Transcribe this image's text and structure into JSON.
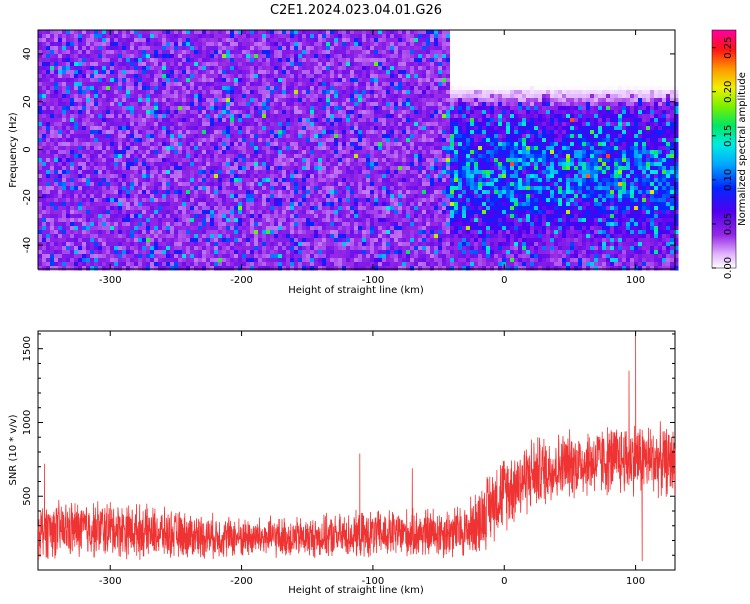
{
  "title": "C2E1.2024.023.04.01.G26",
  "chart_data": [
    {
      "type": "heatmap",
      "xlabel": "Height of straight line (km)",
      "ylabel": "Frequency (Hz)",
      "xlim": [
        -355,
        130
      ],
      "ylim": [
        -50,
        50
      ],
      "xticks": [
        -300,
        -200,
        -100,
        0,
        100
      ],
      "yticks": [
        -40,
        -20,
        0,
        20,
        40
      ],
      "colorbar": {
        "label": "Normalized spectral amplitude",
        "range": [
          0,
          0.27
        ],
        "ticks": [
          "0.00",
          "0.05",
          "0.10",
          "0.15",
          "0.20",
          "0.25"
        ],
        "tick_values": [
          0,
          0.05,
          0.1,
          0.15,
          0.2,
          0.25
        ],
        "colormap": "rainbow (white → violet → blue → cyan → green → yellow → orange → red → pink)"
      },
      "description_values": {
        "background_amplitude": 0.03,
        "peak_amplitude_region_x": [
          -40,
          130
        ],
        "peak_amplitude_region_freq": [
          -35,
          15
        ],
        "low_signal_region": {
          "x": [
            -40,
            130
          ],
          "freq": [
            20,
            50
          ],
          "amplitude": 0.0
        }
      }
    },
    {
      "type": "line",
      "xlabel": "Height of straight line (km)",
      "ylabel": "SNR (10 * v/v)",
      "xlim": [
        -355,
        130
      ],
      "ylim": [
        0,
        1620
      ],
      "xticks": [
        -300,
        -200,
        -100,
        0,
        100
      ],
      "yticks": [
        500,
        1000,
        1500
      ],
      "series": [
        {
          "color": "#ef3333",
          "profile": [
            {
              "x": -355,
              "mean": 270,
              "spread": 170
            },
            {
              "x": -300,
              "mean": 280,
              "spread": 170
            },
            {
              "x": -250,
              "mean": 240,
              "spread": 140
            },
            {
              "x": -200,
              "mean": 220,
              "spread": 120
            },
            {
              "x": -150,
              "mean": 220,
              "spread": 120
            },
            {
              "x": -100,
              "mean": 240,
              "spread": 140
            },
            {
              "x": -60,
              "mean": 250,
              "spread": 150
            },
            {
              "x": -30,
              "mean": 260,
              "spread": 160
            },
            {
              "x": -20,
              "mean": 330,
              "spread": 200
            },
            {
              "x": -5,
              "mean": 500,
              "spread": 230
            },
            {
              "x": 20,
              "mean": 650,
              "spread": 220
            },
            {
              "x": 50,
              "mean": 720,
              "spread": 200
            },
            {
              "x": 100,
              "mean": 760,
              "spread": 220
            },
            {
              "x": 130,
              "mean": 730,
              "spread": 200
            }
          ],
          "peaks": [
            {
              "x": -350,
              "y": 720
            },
            {
              "x": -110,
              "y": 790
            },
            {
              "x": -70,
              "y": 690
            },
            {
              "x": 100,
              "y": 1620
            },
            {
              "x": 95,
              "y": 1350
            },
            {
              "x": 105,
              "y": 60
            }
          ]
        }
      ]
    }
  ]
}
